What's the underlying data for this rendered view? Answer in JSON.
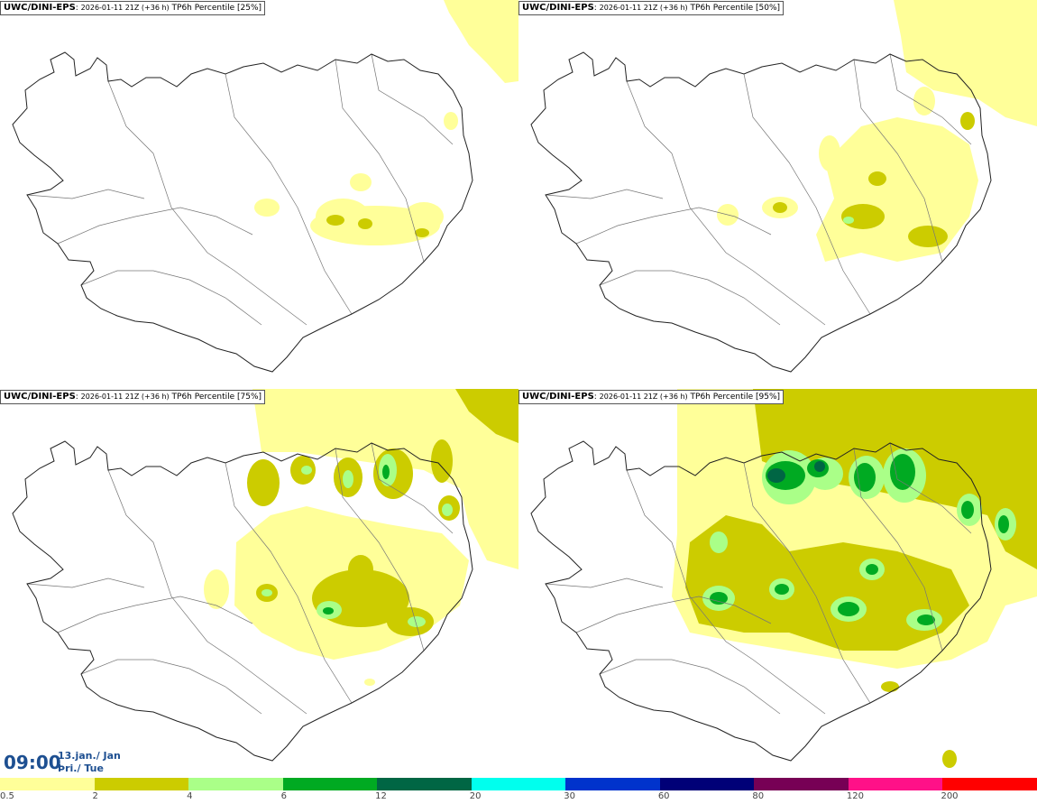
{
  "product": "UWC/DINI-EPS",
  "run_info": "2026-01-11 21Z (+36 h)",
  "panels": [
    {
      "variable_label": "TP6h Percentile [25%]"
    },
    {
      "variable_label": "TP6h Percentile [50%]"
    },
    {
      "variable_label": "TP6h Percentile [75%]"
    },
    {
      "variable_label": "TP6h Percentile [95%]"
    }
  ],
  "valid_time": {
    "hour": "09:00",
    "date_line1": "13.jan./ Jan",
    "date_line2": "Þri./ Tue"
  },
  "legend": {
    "colors": [
      "#ffff99",
      "#cccc00",
      "#aaff88",
      "#00aa22",
      "#006644",
      "#00ffee",
      "#0033cc",
      "#000077",
      "#770055",
      "#ff1188",
      "#ff0000"
    ],
    "ticks": [
      "0.5",
      "2",
      "4",
      "6",
      "12",
      "20",
      "30",
      "60",
      "80",
      "120",
      "200"
    ]
  }
}
